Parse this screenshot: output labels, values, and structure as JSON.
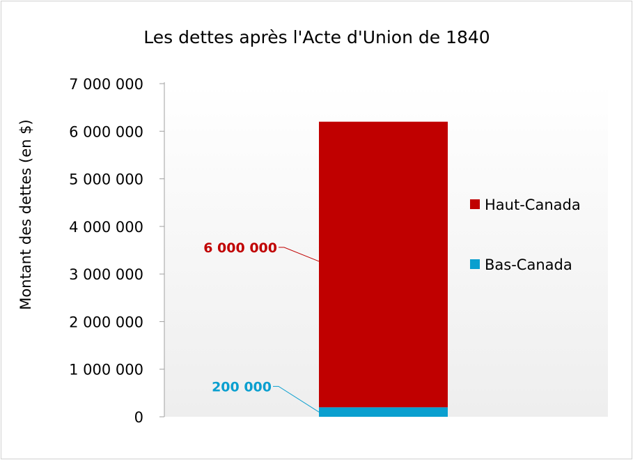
{
  "chart_data": {
    "type": "bar",
    "stacked": true,
    "title": "Les dettes après l'Acte d'Union de 1840",
    "xlabel": "",
    "ylabel": "Montant des dettes (en $)",
    "ylim": [
      0,
      7000000
    ],
    "yticks": [
      0,
      1000000,
      2000000,
      3000000,
      4000000,
      5000000,
      6000000,
      7000000
    ],
    "ytick_labels": [
      "0",
      "1 000 000",
      "2 000 000",
      "3 000 000",
      "4 000 000",
      "5 000 000",
      "6 000 000",
      "7 000 000"
    ],
    "categories": [
      ""
    ],
    "series": [
      {
        "name": "Bas-Canada",
        "values": [
          200000
        ],
        "color": "#0a9fcf",
        "data_label": "200 000"
      },
      {
        "name": "Haut-Canada",
        "values": [
          6000000
        ],
        "color": "#c00000",
        "data_label": "6 000 000"
      }
    ],
    "legend_position": "right",
    "legend_order": [
      "Haut-Canada",
      "Bas-Canada"
    ],
    "grid": false,
    "plot_background": "gradient white to light gray"
  }
}
